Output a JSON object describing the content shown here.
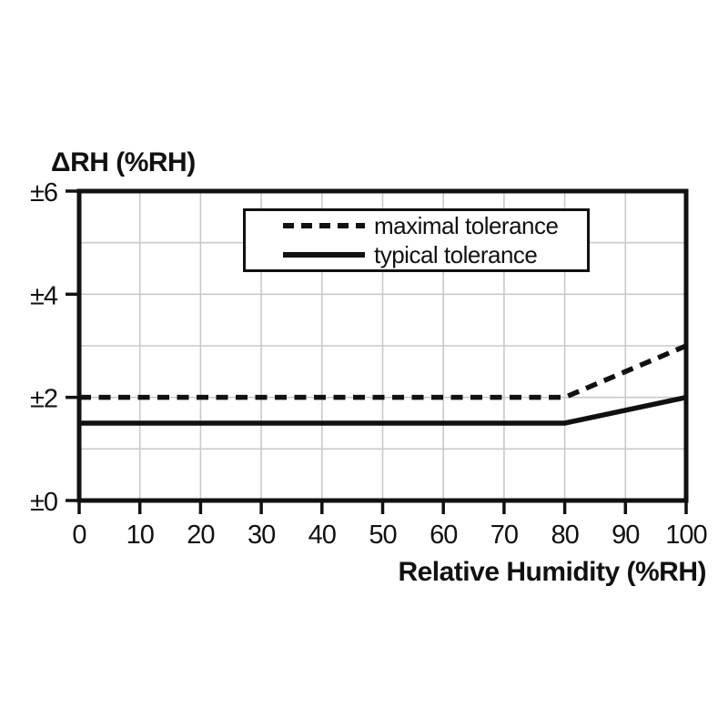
{
  "chart_data": {
    "type": "line",
    "title": "",
    "ylabel": "ΔRH (%RH)",
    "xlabel": "Relative Humidity (%RH)",
    "xlim": [
      0,
      100
    ],
    "ylim": [
      0,
      6
    ],
    "x_ticks": [
      0,
      10,
      20,
      30,
      40,
      50,
      60,
      70,
      80,
      90,
      100
    ],
    "x_tick_labels": [
      "0",
      "10",
      "20",
      "30",
      "40",
      "50",
      "60",
      "70",
      "80",
      "90",
      "100"
    ],
    "y_ticks": [
      0,
      2,
      4,
      6
    ],
    "y_tick_labels": [
      "±0",
      "±2",
      "±4",
      "±6"
    ],
    "x_grid_step": 10,
    "y_grid_step": 1,
    "grid": true,
    "legend_position": "top-inside",
    "series": [
      {
        "name": "maximal tolerance",
        "style": "dashed",
        "color": "#111111",
        "x": [
          0,
          80,
          100
        ],
        "y": [
          2,
          2,
          3
        ]
      },
      {
        "name": "typical tolerance",
        "style": "solid",
        "color": "#111111",
        "x": [
          0,
          80,
          100
        ],
        "y": [
          1.5,
          1.5,
          2
        ]
      }
    ],
    "colors": {
      "line": "#111111",
      "frame": "#111111",
      "grid": "#c9c9c9",
      "background": "#ffffff"
    }
  }
}
